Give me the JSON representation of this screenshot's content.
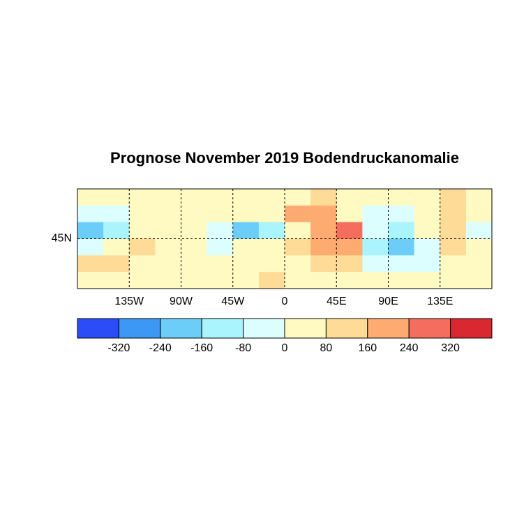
{
  "chart_data": {
    "type": "map",
    "title": "Prognose November 2019 Bodendruckanomalie",
    "xlim": [
      -180,
      180
    ],
    "ylim": [
      0,
      90
    ],
    "xticks": [
      {
        "value": -135,
        "label": "135W"
      },
      {
        "value": -90,
        "label": "90W"
      },
      {
        "value": -45,
        "label": "45W"
      },
      0,
      {
        "value": 45,
        "label": "45E"
      },
      {
        "value": 90,
        "label": "90E"
      },
      {
        "value": 135,
        "label": "135E"
      }
    ],
    "yticks": [
      {
        "value": 45,
        "label": "45N"
      }
    ],
    "grid": true,
    "levels": [
      -320,
      -240,
      -160,
      -80,
      0,
      80,
      160,
      240,
      320
    ],
    "colors": [
      "#2b4cf6",
      "#3c97f5",
      "#6ccdf9",
      "#a9f4fd",
      "#dcfefe",
      "#fefac2",
      "#fedc98",
      "#fdab70",
      "#f46d5f",
      "#d9282f"
    ],
    "field": {
      "lon_edges": [
        -180,
        -157.5,
        -135,
        -112.5,
        -90,
        -67.5,
        -45,
        -22.5,
        0,
        22.5,
        45,
        67.5,
        90,
        112.5,
        135,
        157.5,
        180
      ],
      "lat_edges": [
        90,
        75,
        60,
        45,
        30,
        15,
        0
      ],
      "values": [
        [
          20,
          20,
          40,
          40,
          40,
          40,
          40,
          40,
          60,
          100,
          60,
          20,
          40,
          40,
          100,
          40
        ],
        [
          -60,
          -20,
          20,
          40,
          40,
          40,
          40,
          60,
          160,
          200,
          60,
          -40,
          -20,
          40,
          120,
          40
        ],
        [
          -240,
          -160,
          0,
          40,
          40,
          -80,
          -240,
          -160,
          40,
          200,
          280,
          -40,
          -160,
          40,
          120,
          -40
        ],
        [
          -40,
          40,
          80,
          40,
          40,
          -20,
          0,
          40,
          80,
          200,
          160,
          -160,
          -240,
          -80,
          80,
          40
        ],
        [
          120,
          80,
          40,
          40,
          40,
          40,
          40,
          40,
          40,
          80,
          80,
          -20,
          -80,
          -40,
          40,
          60
        ],
        [
          40,
          40,
          40,
          40,
          40,
          40,
          60,
          80,
          40,
          40,
          40,
          40,
          40,
          40,
          40,
          40
        ]
      ]
    }
  }
}
